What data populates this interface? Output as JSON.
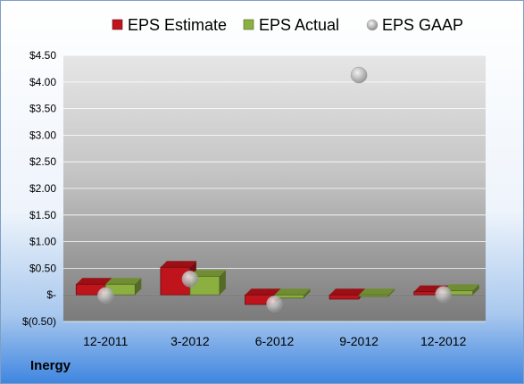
{
  "company": "Inergy",
  "chart_data": {
    "type": "bar",
    "categories": [
      "12-2011",
      "3-2012",
      "6-2012",
      "9-2012",
      "12-2012"
    ],
    "series": [
      {
        "name": "EPS Estimate",
        "kind": "bar",
        "color": "#c0141c",
        "values": [
          0.2,
          0.52,
          -0.18,
          -0.08,
          0.06
        ]
      },
      {
        "name": "EPS Actual",
        "kind": "bar",
        "color": "#8cb040",
        "values": [
          0.2,
          0.35,
          -0.06,
          -0.03,
          0.08
        ]
      },
      {
        "name": "EPS GAAP",
        "kind": "scatter",
        "color": "#b8b8b8",
        "values": [
          -0.01,
          0.3,
          -0.17,
          4.13,
          0.01
        ]
      }
    ],
    "yticks": [
      "$4.50",
      "$4.00",
      "$3.50",
      "$3.00",
      "$2.50",
      "$2.00",
      "$1.50",
      "$1.00",
      "$0.50",
      "$-",
      "$(0.50)"
    ],
    "ylim": [
      -0.5,
      4.5
    ],
    "ystep": 0.5,
    "legend_position": "top",
    "grid": true
  }
}
